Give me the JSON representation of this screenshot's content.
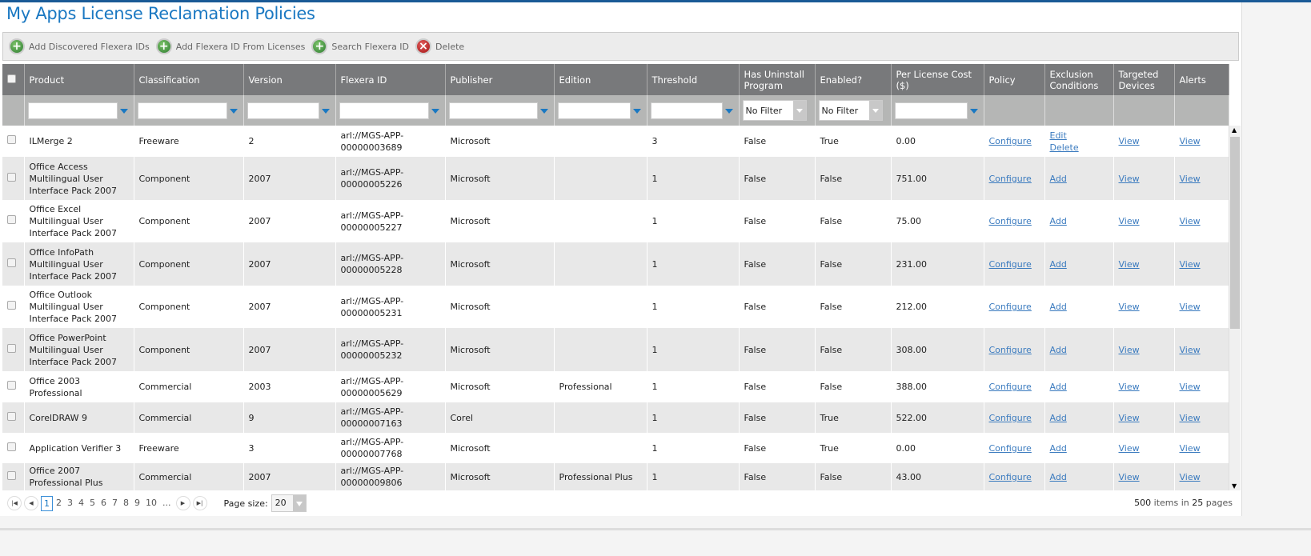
{
  "title": "My Apps License Reclamation Policies",
  "toolbar": {
    "add_discovered": "Add Discovered Flexera IDs",
    "add_from_licenses": "Add Flexera ID From Licenses",
    "search": "Search Flexera ID",
    "delete": "Delete"
  },
  "columns": [
    "Product",
    "Classification",
    "Version",
    "Flexera ID",
    "Publisher",
    "Edition",
    "Threshold",
    "Has Uninstall Program",
    "Enabled?",
    "Per License Cost ($)",
    "Policy",
    "Exclusion Conditions",
    "Targeted Devices",
    "Alerts"
  ],
  "filters": {
    "has_uninstall": "No Filter",
    "enabled": "No Filter"
  },
  "rows": [
    {
      "product": "ILMerge 2",
      "classification": "Freeware",
      "version": "2",
      "flexera_id": "arl://MGS-APP-00000003689",
      "publisher": "Microsoft",
      "edition": "",
      "threshold": "3",
      "uninstall": "False",
      "enabled": "True",
      "cost": "0.00",
      "policy": "Configure",
      "exclusion": "Edit",
      "exclusion2": "Delete",
      "targeted": "View",
      "alerts": "View"
    },
    {
      "product": "Office Access Multilingual User Interface Pack 2007",
      "classification": "Component",
      "version": "2007",
      "flexera_id": "arl://MGS-APP-00000005226",
      "publisher": "Microsoft",
      "edition": "",
      "threshold": "1",
      "uninstall": "False",
      "enabled": "False",
      "cost": "751.00",
      "policy": "Configure",
      "exclusion": "Add",
      "targeted": "View",
      "alerts": "View"
    },
    {
      "product": "Office Excel Multilingual User Interface Pack 2007",
      "classification": "Component",
      "version": "2007",
      "flexera_id": "arl://MGS-APP-00000005227",
      "publisher": "Microsoft",
      "edition": "",
      "threshold": "1",
      "uninstall": "False",
      "enabled": "False",
      "cost": "75.00",
      "policy": "Configure",
      "exclusion": "Add",
      "targeted": "View",
      "alerts": "View"
    },
    {
      "product": "Office InfoPath Multilingual User Interface Pack 2007",
      "classification": "Component",
      "version": "2007",
      "flexera_id": "arl://MGS-APP-00000005228",
      "publisher": "Microsoft",
      "edition": "",
      "threshold": "1",
      "uninstall": "False",
      "enabled": "False",
      "cost": "231.00",
      "policy": "Configure",
      "exclusion": "Add",
      "targeted": "View",
      "alerts": "View"
    },
    {
      "product": "Office Outlook Multilingual User Interface Pack 2007",
      "classification": "Component",
      "version": "2007",
      "flexera_id": "arl://MGS-APP-00000005231",
      "publisher": "Microsoft",
      "edition": "",
      "threshold": "1",
      "uninstall": "False",
      "enabled": "False",
      "cost": "212.00",
      "policy": "Configure",
      "exclusion": "Add",
      "targeted": "View",
      "alerts": "View"
    },
    {
      "product": "Office PowerPoint Multilingual User Interface Pack 2007",
      "classification": "Component",
      "version": "2007",
      "flexera_id": "arl://MGS-APP-00000005232",
      "publisher": "Microsoft",
      "edition": "",
      "threshold": "1",
      "uninstall": "False",
      "enabled": "False",
      "cost": "308.00",
      "policy": "Configure",
      "exclusion": "Add",
      "targeted": "View",
      "alerts": "View"
    },
    {
      "product": "Office 2003 Professional",
      "classification": "Commercial",
      "version": "2003",
      "flexera_id": "arl://MGS-APP-00000005629",
      "publisher": "Microsoft",
      "edition": "Professional",
      "threshold": "1",
      "uninstall": "False",
      "enabled": "False",
      "cost": "388.00",
      "policy": "Configure",
      "exclusion": "Add",
      "targeted": "View",
      "alerts": "View"
    },
    {
      "product": "CorelDRAW 9",
      "classification": "Commercial",
      "version": "9",
      "flexera_id": "arl://MGS-APP-00000007163",
      "publisher": "Corel",
      "edition": "",
      "threshold": "1",
      "uninstall": "False",
      "enabled": "True",
      "cost": "522.00",
      "policy": "Configure",
      "exclusion": "Add",
      "targeted": "View",
      "alerts": "View"
    },
    {
      "product": "Application Verifier 3",
      "classification": "Freeware",
      "version": "3",
      "flexera_id": "arl://MGS-APP-00000007768",
      "publisher": "Microsoft",
      "edition": "",
      "threshold": "1",
      "uninstall": "False",
      "enabled": "True",
      "cost": "0.00",
      "policy": "Configure",
      "exclusion": "Add",
      "targeted": "View",
      "alerts": "View"
    },
    {
      "product": "Office 2007 Professional Plus",
      "classification": "Commercial",
      "version": "2007",
      "flexera_id": "arl://MGS-APP-00000009806",
      "publisher": "Microsoft",
      "edition": "Professional Plus",
      "threshold": "1",
      "uninstall": "False",
      "enabled": "False",
      "cost": "43.00",
      "policy": "Configure",
      "exclusion": "Add",
      "targeted": "View",
      "alerts": "View"
    }
  ],
  "pager": {
    "pages": [
      "1",
      "2",
      "3",
      "4",
      "5",
      "6",
      "7",
      "8",
      "9",
      "10",
      "..."
    ],
    "current": "1",
    "page_size_label": "Page size:",
    "page_size": "20",
    "items_total": "500",
    "items_mid": "items in",
    "pages_total": "25",
    "pages_suffix": "pages"
  }
}
